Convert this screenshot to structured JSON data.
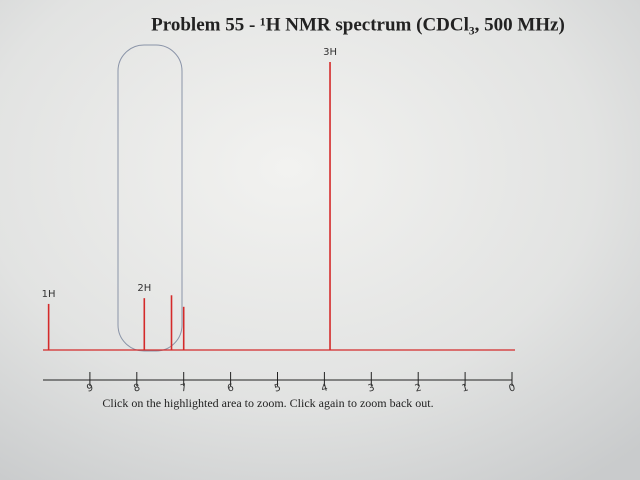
{
  "chart_data": {
    "type": "spectrum",
    "title": "Problem 55 - ¹H NMR spectrum (CDCl₃, 500 MHz)",
    "x": [
      9.88,
      7.84,
      7.26,
      7.0,
      3.88
    ],
    "values": [
      16,
      18,
      19,
      15,
      100
    ],
    "peak_labels": [
      "1H",
      "2H",
      null,
      null,
      "3H"
    ],
    "color": "#d42a2a",
    "xlim": [
      10,
      0
    ],
    "xticks": [
      9,
      8,
      7,
      6,
      5,
      4,
      3,
      2,
      1,
      0
    ],
    "caption": "Click on the highlighted area to zoom. Click again to zoom back out."
  }
}
